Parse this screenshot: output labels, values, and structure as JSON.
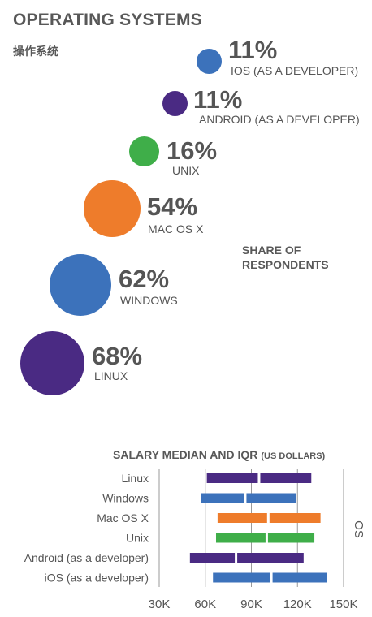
{
  "title": "OPERATING SYSTEMS",
  "subtitle": "操作系统",
  "share_label": [
    "SHARE OF",
    "RESPONDENTS"
  ],
  "bubbles": [
    {
      "label": "IOS (AS A DEVELOPER)",
      "pct": "11%",
      "value": 11,
      "color": "#3c72bb"
    },
    {
      "label": "ANDROID (AS A DEVELOPER)",
      "pct": "11%",
      "value": 11,
      "color": "#4a2a83"
    },
    {
      "label": "UNIX",
      "pct": "16%",
      "value": 16,
      "color": "#3fae49"
    },
    {
      "label": "MAC OS X",
      "pct": "54%",
      "value": 54,
      "color": "#ee7c2b"
    },
    {
      "label": "WINDOWS",
      "pct": "62%",
      "value": 62,
      "color": "#3c72bb"
    },
    {
      "label": "LINUX",
      "pct": "68%",
      "value": 68,
      "color": "#4a2a83"
    }
  ],
  "chart_data": {
    "type": "bar",
    "title": "SALARY MEDIAN AND IQR",
    "title_unit": "(US DOLLARS)",
    "side_label": "OS",
    "x_ticks": [
      "30K",
      "60K",
      "90K",
      "120K",
      "150K"
    ],
    "xlim": [
      30000,
      150000
    ],
    "series": [
      {
        "name": "Linux",
        "q1": 61000,
        "median": 95000,
        "q3": 129000,
        "color": "#4a2a83"
      },
      {
        "name": "Windows",
        "q1": 57000,
        "median": 86000,
        "q3": 119000,
        "color": "#3c72bb"
      },
      {
        "name": "Mac OS X",
        "q1": 68000,
        "median": 101000,
        "q3": 135000,
        "color": "#ee7c2b"
      },
      {
        "name": "Unix",
        "q1": 67000,
        "median": 100000,
        "q3": 131000,
        "color": "#3fae49"
      },
      {
        "name": "Android (as a developer)",
        "q1": 50000,
        "median": 80000,
        "q3": 124000,
        "color": "#4a2a83"
      },
      {
        "name": "iOS (as a developer)",
        "q1": 65000,
        "median": 103000,
        "q3": 139000,
        "color": "#3c72bb"
      }
    ]
  }
}
